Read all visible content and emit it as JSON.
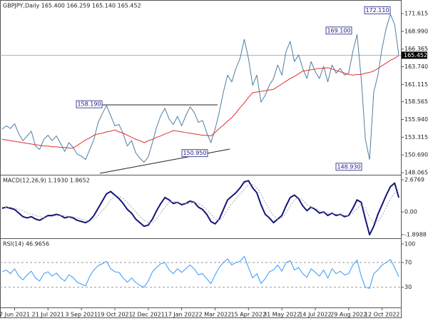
{
  "chart_data": [
    {
      "type": "line",
      "title": "GBPJPY,Daily  165.400 166.259 165.140 165.452",
      "categories": [
        null,
        null,
        null,
        "7 Jun 2021",
        null,
        null,
        null,
        null,
        null,
        null,
        null,
        "21 Jul 2021",
        null,
        null,
        null,
        null,
        null,
        null,
        null,
        "3 Sep 2021",
        null,
        null,
        null,
        null,
        null,
        null,
        null,
        "19 Oct 2021",
        null,
        null,
        null,
        null,
        null,
        null,
        null,
        "2 Dec 2021",
        null,
        null,
        null,
        null,
        null,
        null,
        null,
        "17 Jan 2022",
        null,
        null,
        null,
        null,
        null,
        null,
        null,
        "2 Mar 2022",
        null,
        null,
        null,
        null,
        null,
        null,
        null,
        "15 Apr 2022",
        null,
        null,
        null,
        null,
        null,
        null,
        null,
        "31 May 2022",
        null,
        null,
        null,
        null,
        null,
        null,
        null,
        "14 Jul 2022",
        null,
        null,
        null,
        null,
        null,
        null,
        null,
        "29 Aug 2022",
        null,
        null,
        null,
        null,
        null,
        null,
        null,
        "12 Oct 2022",
        null,
        null,
        null,
        null
      ],
      "series": [
        {
          "color": "#4f7ea3",
          "values": [
            154.5,
            155.0,
            154.6,
            155.3,
            153.8,
            152.8,
            153.5,
            154.2,
            152.0,
            151.5,
            153.0,
            153.6,
            152.8,
            153.5,
            152.4,
            151.2,
            152.5,
            151.8,
            150.8,
            150.5,
            150.0,
            151.5,
            153.0,
            155.5,
            156.8,
            158.0,
            156.5,
            155.0,
            155.2,
            153.8,
            152.0,
            152.8,
            151.0,
            150.2,
            149.6,
            150.4,
            152.5,
            154.8,
            156.5,
            157.6,
            156.0,
            155.2,
            156.4,
            155.0,
            156.5,
            157.8,
            157.0,
            155.5,
            155.8,
            154.0,
            152.5,
            154.5,
            157.0,
            160.0,
            162.5,
            161.5,
            163.5,
            165.0,
            167.8,
            165.0,
            161.0,
            162.5,
            158.5,
            159.5,
            161.0,
            162.0,
            164.0,
            162.5,
            166.0,
            167.5,
            164.5,
            165.5,
            163.5,
            162.0,
            164.5,
            163.0,
            162.0,
            163.8,
            161.5,
            164.0,
            162.8,
            163.5,
            162.5,
            162.8,
            166.0,
            168.5,
            162.0,
            153.0,
            150.0,
            160.0,
            162.5,
            166.5,
            169.5,
            171.5,
            170.0,
            165.452
          ]
        },
        {
          "color": "#e03030",
          "values": [
            153.0,
            152.9,
            152.8,
            152.7,
            152.6,
            152.5,
            152.4,
            152.3,
            152.2,
            152.1,
            152.0,
            152.0,
            151.9,
            151.9,
            151.8,
            151.8,
            151.7,
            151.7,
            152.1,
            152.5,
            152.9,
            153.2,
            153.6,
            153.8,
            153.9,
            154.1,
            154.2,
            154.4,
            154.1,
            153.9,
            153.6,
            153.3,
            153.0,
            152.8,
            152.5,
            152.8,
            153.0,
            153.3,
            153.5,
            153.8,
            154.0,
            154.3,
            154.2,
            154.1,
            154.0,
            153.9,
            153.8,
            153.7,
            153.6,
            153.6,
            153.5,
            154.0,
            154.6,
            155.1,
            155.7,
            156.2,
            156.9,
            157.7,
            158.4,
            159.2,
            159.9,
            160.0,
            160.1,
            160.2,
            160.3,
            160.4,
            160.8,
            161.2,
            161.6,
            162.0,
            162.3,
            162.7,
            163.1,
            163.2,
            163.3,
            163.4,
            163.5,
            163.5,
            163.6,
            163.4,
            163.2,
            163.0,
            162.8,
            162.6,
            162.5,
            162.6,
            162.6,
            162.8,
            162.9,
            163.1,
            163.5,
            163.9,
            164.3,
            164.7,
            165.0,
            165.4
          ]
        }
      ],
      "ylim": [
        147.96,
        172.78
      ],
      "yticks": [
        148.065,
        {
          "value": 150.69,
          "label": "150.690"
        },
        153.315,
        {
          "value": 155.94,
          "label": "155.940"
        },
        158.565,
        161.115,
        {
          "value": 163.74,
          "label": "163.740"
        },
        166.365,
        {
          "value": 168.99,
          "label": "168.990"
        },
        171.615
      ],
      "last_price": 165.452,
      "annotations": [
        {
          "value": 172.11,
          "label": "172.110"
        },
        {
          "value": 169.1,
          "label": "169.100"
        },
        {
          "value": 158.19,
          "label": "158.190"
        },
        {
          "value": 150.95,
          "label": "150.950"
        },
        {
          "value": 148.93,
          "label": "148.930"
        }
      ]
    },
    {
      "type": "line",
      "title": "MACD(12,26,9) 1.1930 1.8652",
      "series": [
        {
          "color": "#15157a",
          "values": [
            0.3,
            0.4,
            0.3,
            0.2,
            -0.1,
            -0.4,
            -0.5,
            -0.4,
            -0.6,
            -0.7,
            -0.5,
            -0.3,
            -0.3,
            -0.2,
            -0.3,
            -0.5,
            -0.4,
            -0.5,
            -0.7,
            -0.8,
            -0.9,
            -0.7,
            -0.3,
            0.3,
            0.9,
            1.5,
            1.7,
            1.4,
            1.1,
            0.7,
            0.2,
            -0.1,
            -0.6,
            -0.9,
            -1.2,
            -1.1,
            -0.6,
            0.1,
            0.7,
            1.2,
            1.0,
            0.7,
            0.8,
            0.6,
            0.7,
            0.9,
            0.8,
            0.4,
            0.2,
            -0.2,
            -0.8,
            -1.0,
            -0.6,
            0.2,
            1.0,
            1.3,
            1.6,
            2.0,
            2.5,
            2.6,
            2.0,
            1.6,
            0.6,
            -0.2,
            -0.5,
            -0.9,
            -0.6,
            -0.3,
            0.5,
            1.2,
            1.4,
            1.1,
            0.5,
            0.1,
            0.4,
            0.2,
            -0.1,
            0.0,
            -0.3,
            -0.1,
            -0.3,
            -0.2,
            -0.4,
            -0.3,
            0.3,
            1.0,
            0.8,
            -0.6,
            -1.9,
            -1.2,
            -0.2,
            0.6,
            1.4,
            2.1,
            2.4,
            1.193
          ]
        },
        {
          "color": "#a8a8a8",
          "dashed": true,
          "values": [
            0.4,
            0.4,
            0.4,
            0.3,
            0.2,
            0.1,
            -0.1,
            -0.2,
            -0.3,
            -0.4,
            -0.5,
            -0.4,
            -0.4,
            -0.3,
            -0.3,
            -0.3,
            -0.4,
            -0.4,
            -0.5,
            -0.6,
            -0.7,
            -0.7,
            -0.6,
            -0.3,
            0.1,
            0.5,
            1.0,
            1.3,
            1.3,
            1.1,
            0.8,
            0.4,
            0.0,
            -0.4,
            -0.7,
            -0.9,
            -0.9,
            -0.6,
            -0.1,
            0.4,
            0.8,
            0.9,
            0.8,
            0.7,
            0.7,
            0.7,
            0.8,
            0.7,
            0.5,
            0.2,
            -0.2,
            -0.6,
            -0.7,
            -0.4,
            0.2,
            0.7,
            1.1,
            1.5,
            1.9,
            2.3,
            2.3,
            2.0,
            1.5,
            0.8,
            0.2,
            -0.3,
            -0.6,
            -0.5,
            -0.1,
            0.5,
            1.0,
            1.2,
            1.0,
            0.6,
            0.4,
            0.3,
            0.1,
            0.0,
            -0.1,
            -0.1,
            -0.2,
            -0.2,
            -0.3,
            -0.3,
            -0.1,
            0.3,
            0.6,
            0.3,
            -0.5,
            -0.9,
            -0.8,
            -0.3,
            0.4,
            1.1,
            1.6,
            1.8652
          ]
        }
      ],
      "ylim": [
        -2.1365,
        2.9146
      ],
      "yticks": [
        2.6769,
        {
          "value": 0,
          "label": "0.00"
        },
        -1.8988
      ]
    },
    {
      "type": "line",
      "title": "RSI(14) 46.9656",
      "series": [
        {
          "color": "#3399ff",
          "values": [
            55,
            58,
            52,
            60,
            48,
            42,
            50,
            56,
            45,
            40,
            52,
            55,
            48,
            53,
            45,
            40,
            50,
            46,
            38,
            35,
            32,
            48,
            58,
            65,
            68,
            72,
            60,
            55,
            54,
            45,
            38,
            45,
            38,
            33,
            30,
            40,
            55,
            62,
            68,
            70,
            58,
            52,
            60,
            54,
            60,
            66,
            60,
            50,
            52,
            44,
            36,
            50,
            62,
            70,
            76,
            66,
            70,
            72,
            80,
            62,
            45,
            52,
            36,
            44,
            55,
            58,
            66,
            56,
            70,
            73,
            58,
            62,
            52,
            46,
            60,
            54,
            48,
            58,
            45,
            60,
            52,
            56,
            50,
            52,
            66,
            74,
            48,
            30,
            28,
            52,
            58,
            66,
            70,
            75,
            62,
            46.9656
          ]
        }
      ],
      "ylim": [
        -1.5,
        105.8
      ],
      "yticks": [
        100,
        70,
        30
      ],
      "grid": true
    }
  ]
}
